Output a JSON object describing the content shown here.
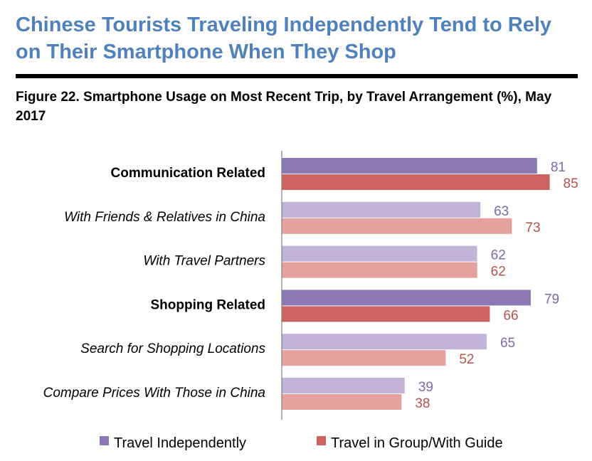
{
  "header": {
    "headline": "Chinese Tourists Traveling Independently Tend to Rely on Their Smartphone When They Shop",
    "figure_title": "Figure 22. Smartphone Usage on Most Recent Trip, by Travel Arrangement (%), May 2017"
  },
  "colors": {
    "headline": "#4f81bd",
    "independent_main": "#8c78b4",
    "independent_sub": "#c1b4d8",
    "group_main": "#cc6361",
    "group_sub": "#e4a19e",
    "independent_label": "#7f69aa",
    "group_label": "#b8514d"
  },
  "chart_data": {
    "type": "bar",
    "orientation": "horizontal",
    "title": "Figure 22. Smartphone Usage on Most Recent Trip, by Travel Arrangement (%), May 2017",
    "categories": [
      "Communication Related",
      "With Friends & Relatives in China",
      "With Travel Partners",
      "Shopping Related",
      "Search for Shopping Locations",
      "Compare Prices With Those in China"
    ],
    "category_styles": [
      "bold",
      "italic",
      "italic",
      "bold",
      "italic",
      "italic"
    ],
    "series": [
      {
        "name": "Travel Independently",
        "values": [
          81,
          63,
          62,
          79,
          65,
          39
        ]
      },
      {
        "name": "Travel in Group/With Guide",
        "values": [
          85,
          73,
          62,
          66,
          52,
          38
        ]
      }
    ],
    "xlim": [
      0,
      100
    ],
    "grid": false,
    "legend_position": "bottom"
  }
}
